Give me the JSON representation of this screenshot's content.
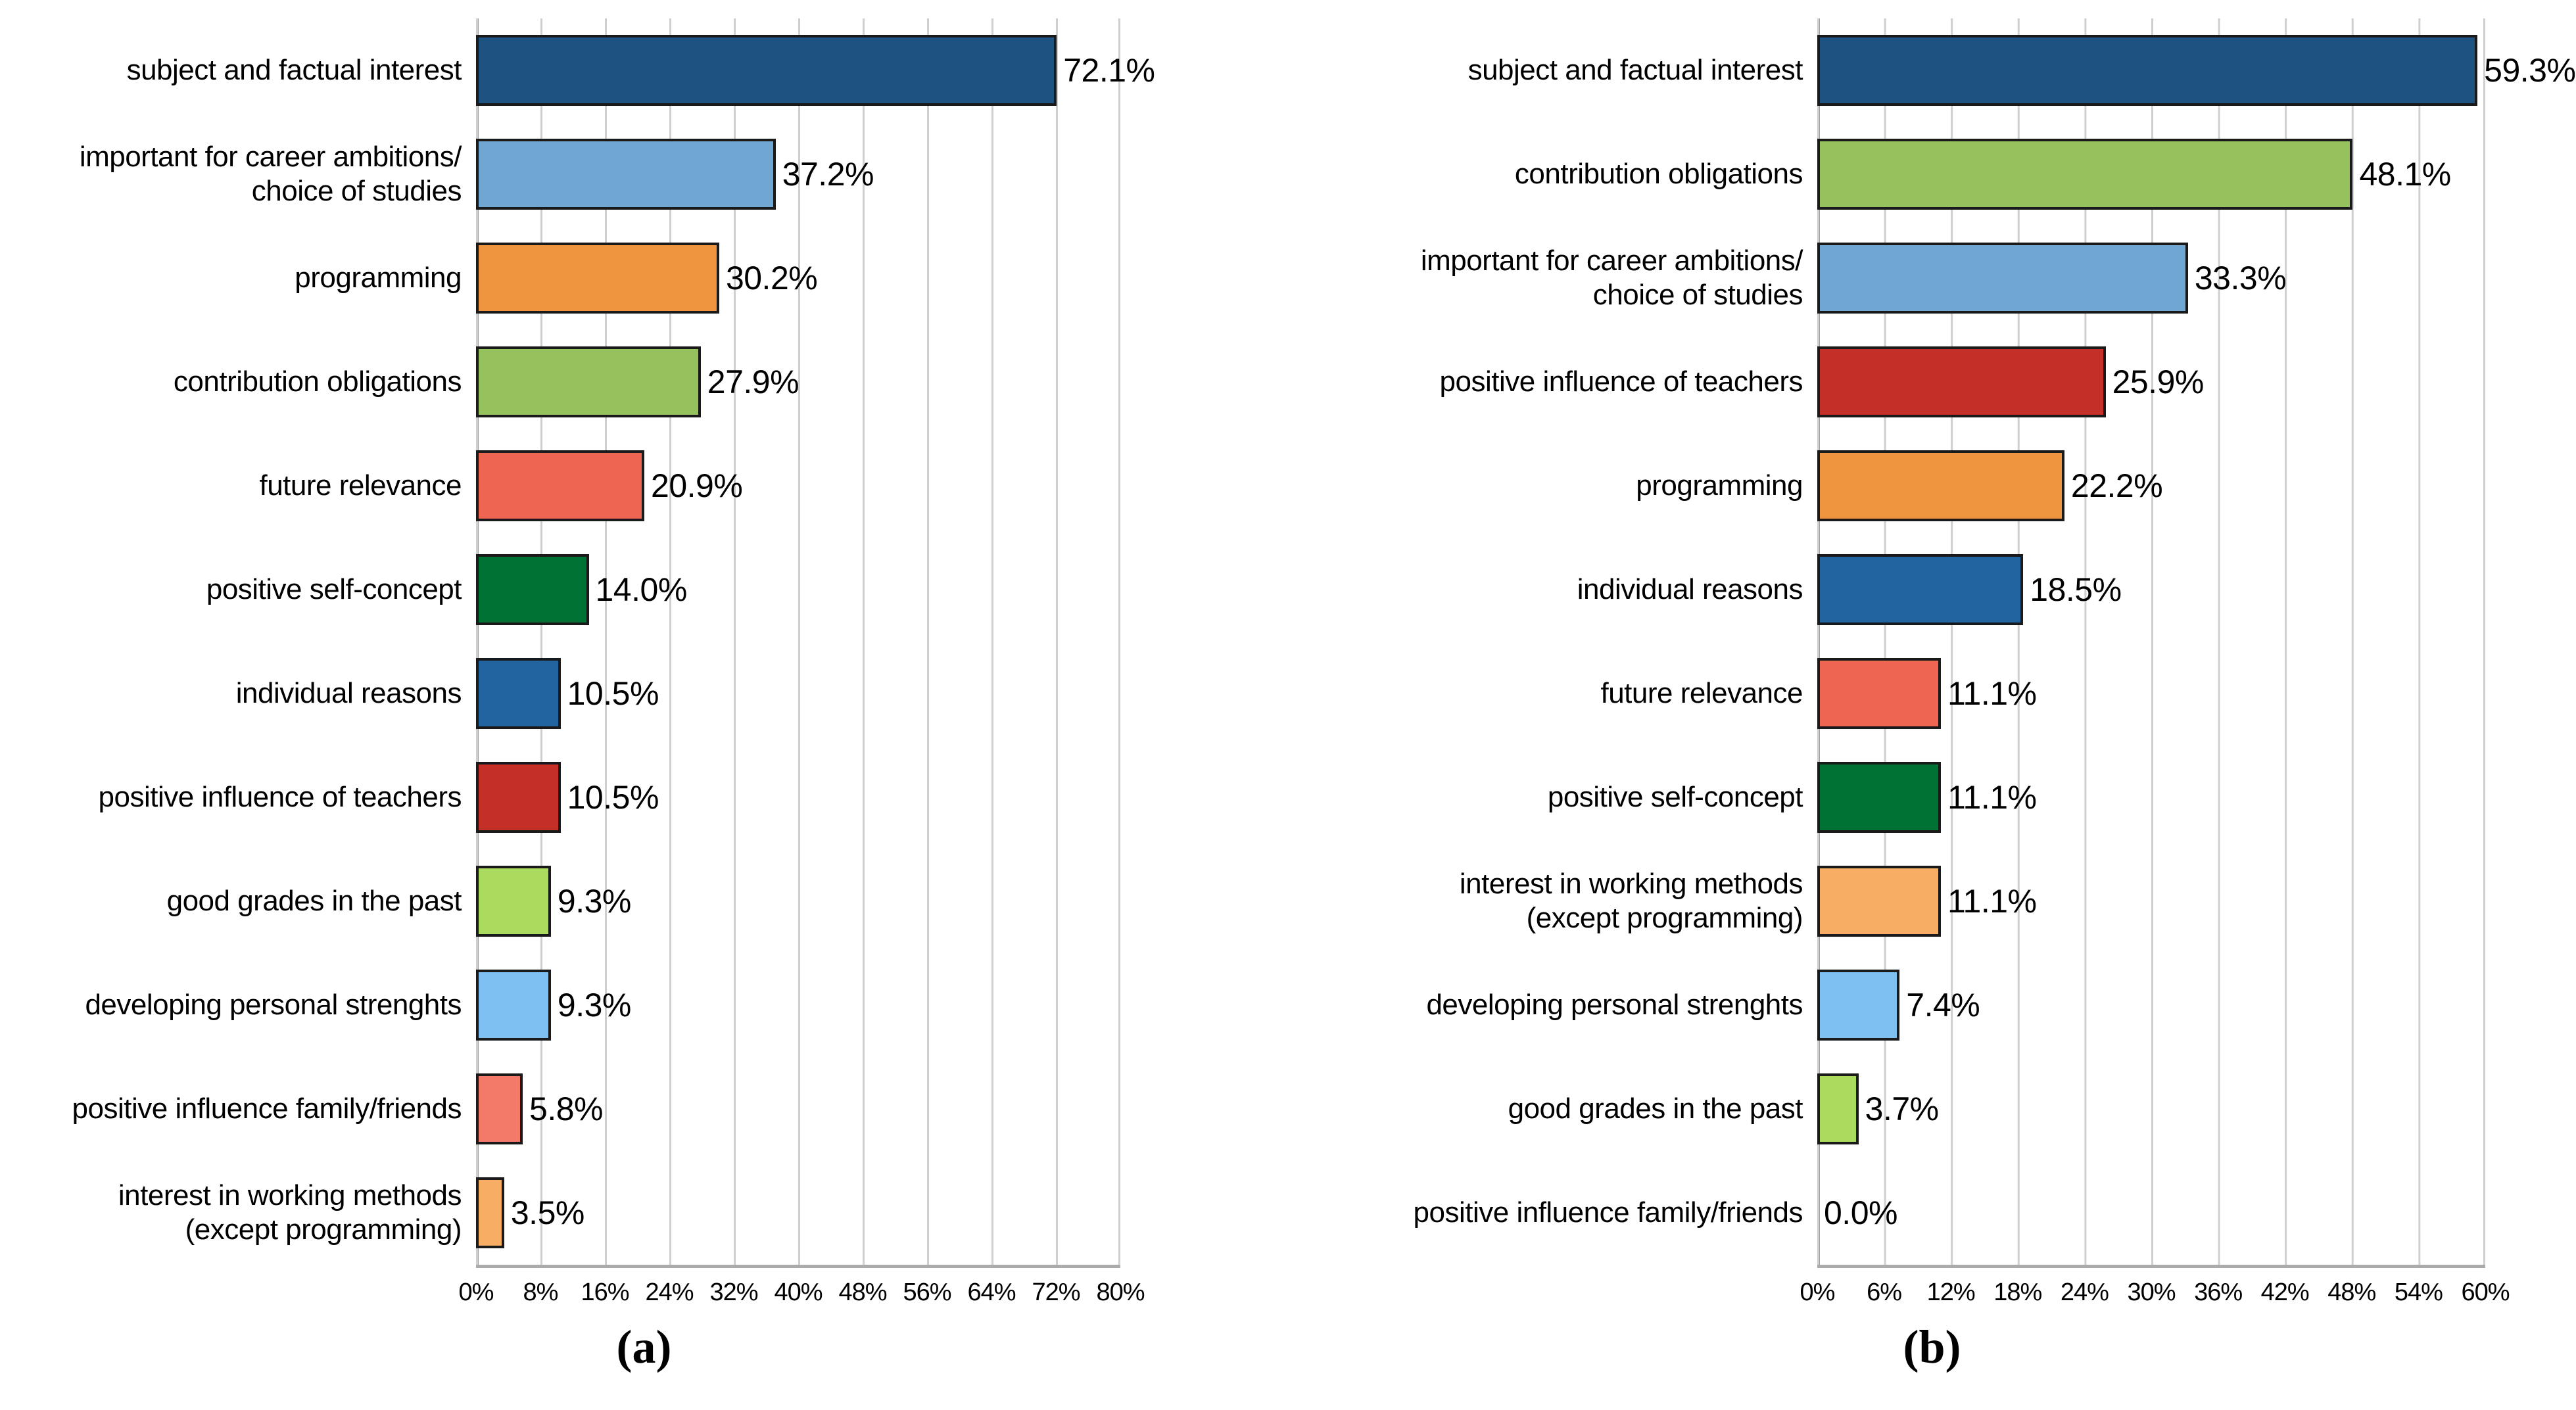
{
  "figure": {
    "caption_a": "(a)",
    "caption_b": "(b)"
  },
  "style_colors": {
    "gridline": "#cfcfcf",
    "axis_line": "#9f9f9f",
    "bar_border": "#1a1a1a",
    "background": "#ffffff"
  },
  "chart_data": [
    {
      "id": "a",
      "type": "bar",
      "orientation": "horizontal",
      "caption": "(a)",
      "title": "",
      "xlabel": "",
      "ylabel": "",
      "xlim": [
        0,
        80
      ],
      "grid": true,
      "legend": "none",
      "x_ticks": [
        "0%",
        "8%",
        "16%",
        "24%",
        "32%",
        "40%",
        "48%",
        "56%",
        "64%",
        "72%",
        "80%"
      ],
      "bars": [
        {
          "label": "subject and factual interest",
          "value": 72.1,
          "display": "72.1%",
          "color": "#1E5281"
        },
        {
          "label": "important for career ambitions/\nchoice of studies",
          "value": 37.2,
          "display": "37.2%",
          "color": "#6FA6D2"
        },
        {
          "label": "programming",
          "value": 30.2,
          "display": "30.2%",
          "color": "#F0953F"
        },
        {
          "label": "contribution obligations",
          "value": 27.9,
          "display": "27.9%",
          "color": "#95C25C"
        },
        {
          "label": "future relevance",
          "value": 20.9,
          "display": "20.9%",
          "color": "#EE6551"
        },
        {
          "label": "positive self-concept",
          "value": 14.0,
          "display": "14.0%",
          "color": "#007334"
        },
        {
          "label": "individual reasons",
          "value": 10.5,
          "display": "10.5%",
          "color": "#2264A0"
        },
        {
          "label": "positive influence of teachers",
          "value": 10.5,
          "display": "10.5%",
          "color": "#C43027"
        },
        {
          "label": "good grades in the past",
          "value": 9.3,
          "display": "9.3%",
          "color": "#AADB5E"
        },
        {
          "label": "developing personal strenghts",
          "value": 9.3,
          "display": "9.3%",
          "color": "#7EC0F2"
        },
        {
          "label": "positive influence family/friends",
          "value": 5.8,
          "display": "5.8%",
          "color": "#F37968"
        },
        {
          "label": "interest in working methods\n(except programming)",
          "value": 3.5,
          "display": "3.5%",
          "color": "#F7AD63"
        }
      ]
    },
    {
      "id": "b",
      "type": "bar",
      "orientation": "horizontal",
      "caption": "(b)",
      "title": "",
      "xlabel": "",
      "ylabel": "",
      "xlim": [
        0,
        60
      ],
      "grid": true,
      "legend": "none",
      "x_ticks": [
        "0%",
        "6%",
        "12%",
        "18%",
        "24%",
        "30%",
        "36%",
        "42%",
        "48%",
        "54%",
        "60%"
      ],
      "bars": [
        {
          "label": "subject and factual interest",
          "value": 59.3,
          "display": "59.3%",
          "color": "#1E5281"
        },
        {
          "label": "contribution obligations",
          "value": 48.1,
          "display": "48.1%",
          "color": "#95C25C"
        },
        {
          "label": "important for career ambitions/\nchoice of studies",
          "value": 33.3,
          "display": "33.3%",
          "color": "#6FA6D2"
        },
        {
          "label": "positive influence of teachers",
          "value": 25.9,
          "display": "25.9%",
          "color": "#C43027"
        },
        {
          "label": "programming",
          "value": 22.2,
          "display": "22.2%",
          "color": "#F0953F"
        },
        {
          "label": "individual reasons",
          "value": 18.5,
          "display": "18.5%",
          "color": "#2264A0"
        },
        {
          "label": "future relevance",
          "value": 11.1,
          "display": "11.1%",
          "color": "#EE6551"
        },
        {
          "label": "positive self-concept",
          "value": 11.1,
          "display": "11.1%",
          "color": "#007334"
        },
        {
          "label": "interest in working methods\n(except programming)",
          "value": 11.1,
          "display": "11.1%",
          "color": "#F7AD63"
        },
        {
          "label": "developing personal strenghts",
          "value": 7.4,
          "display": "7.4%",
          "color": "#7EC0F2"
        },
        {
          "label": "good grades in the past",
          "value": 3.7,
          "display": "3.7%",
          "color": "#AADB5E"
        },
        {
          "label": "positive influence family/friends",
          "value": 0.0,
          "display": "0.0%",
          "color": "#F37968"
        }
      ]
    }
  ]
}
